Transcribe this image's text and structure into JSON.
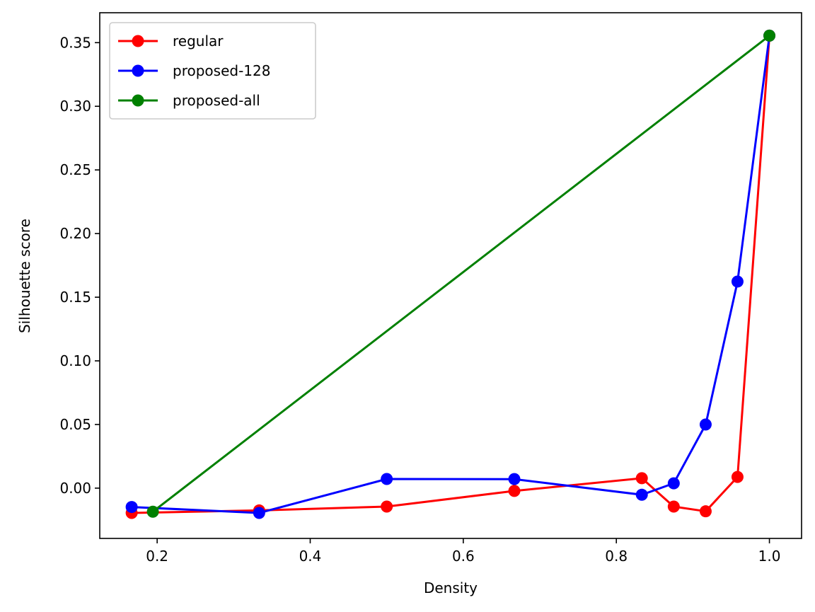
{
  "chart_data": {
    "type": "line",
    "title": "",
    "xlabel": "Density",
    "ylabel": "Silhouette score",
    "xlim": [
      0.125,
      1.042
    ],
    "ylim": [
      -0.0395,
      0.3735
    ],
    "xticks": [
      0.2,
      0.4,
      0.6,
      0.8,
      1.0
    ],
    "xtick_labels": [
      "0.2",
      "0.4",
      "0.6",
      "0.8",
      "1.0"
    ],
    "yticks": [
      0.0,
      0.05,
      0.1,
      0.15,
      0.2,
      0.25,
      0.3,
      0.35
    ],
    "ytick_labels": [
      "0.00",
      "0.05",
      "0.10",
      "0.15",
      "0.20",
      "0.25",
      "0.30",
      "0.35"
    ],
    "grid": false,
    "legend_position": "top-left",
    "marker": "circle",
    "series": [
      {
        "name": "regular",
        "color": "#ff0000",
        "points": [
          [
            0.1667,
            -0.0195
          ],
          [
            0.3333,
            -0.0175
          ],
          [
            0.5,
            -0.0145
          ],
          [
            0.6667,
            -0.0022
          ],
          [
            0.8333,
            0.0078
          ],
          [
            0.875,
            -0.0145
          ],
          [
            0.9167,
            -0.0182
          ],
          [
            0.9583,
            0.0088
          ],
          [
            1.0,
            0.3555
          ]
        ]
      },
      {
        "name": "proposed-128",
        "color": "#0000ff",
        "points": [
          [
            0.1667,
            -0.0148
          ],
          [
            0.3333,
            -0.0195
          ],
          [
            0.5,
            0.0072
          ],
          [
            0.6667,
            0.0071
          ],
          [
            0.8333,
            -0.0052
          ],
          [
            0.875,
            0.0038
          ],
          [
            0.9167,
            0.05
          ],
          [
            0.9583,
            0.1623
          ],
          [
            1.0,
            0.3555
          ]
        ]
      },
      {
        "name": "proposed-all",
        "color": "#008000",
        "points": [
          [
            0.1944,
            -0.0185
          ],
          [
            1.0,
            0.3555
          ]
        ]
      }
    ]
  }
}
